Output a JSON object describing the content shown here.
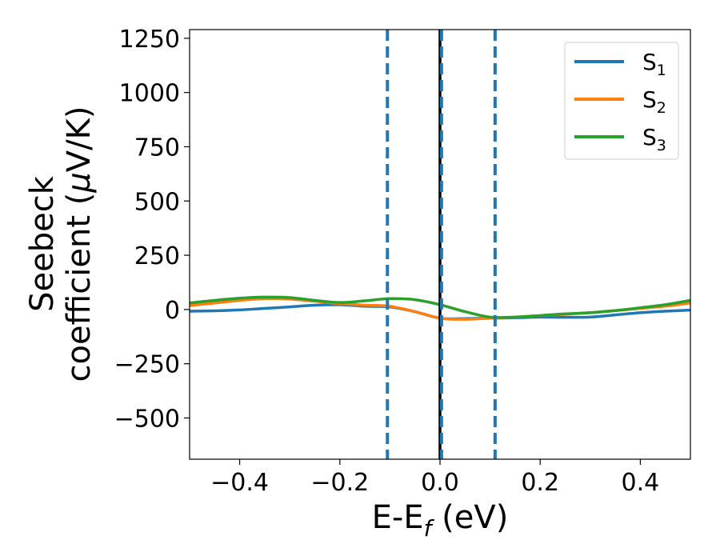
{
  "chart_data": {
    "type": "line",
    "xlabel": {
      "main": "E-E",
      "sub": "f",
      "unit": " (eV)"
    },
    "ylabel": {
      "line1": "Seebeck",
      "line2": "coefficient  (",
      "mu": "μ",
      "line2_end": "V/K)"
    },
    "xlim": [
      -0.5,
      0.5
    ],
    "ylim": [
      -690,
      1290
    ],
    "xticks": [
      -0.4,
      -0.2,
      0.0,
      0.2,
      0.4
    ],
    "xtick_labels": [
      "−0.4",
      "−0.2",
      "0.0",
      "0.2",
      "0.4"
    ],
    "yticks": [
      -500,
      -250,
      0,
      250,
      500,
      750,
      1000,
      1250
    ],
    "ytick_labels": [
      "−500",
      "−250",
      "0",
      "250",
      "500",
      "750",
      "1000",
      "1250"
    ],
    "grid": false,
    "legend_position": "top-right",
    "series": [
      {
        "name": "S",
        "sub": "1",
        "color": "#1f77b4",
        "x": [
          -0.5,
          -0.45,
          -0.4,
          -0.35,
          -0.3,
          -0.25,
          -0.2,
          -0.15,
          -0.1,
          -0.05,
          0.0,
          0.05,
          0.1,
          0.15,
          0.2,
          0.25,
          0.3,
          0.35,
          0.4,
          0.45,
          0.5
        ],
        "y": [
          -8,
          -6,
          -2,
          5,
          12,
          20,
          22,
          15,
          12,
          -10,
          -40,
          -42,
          -40,
          -38,
          -35,
          -36,
          -35,
          -25,
          -15,
          -8,
          -3
        ]
      },
      {
        "name": "S",
        "sub": "2",
        "color": "#ff7f0e",
        "x": [
          -0.5,
          -0.45,
          -0.4,
          -0.35,
          -0.3,
          -0.25,
          -0.2,
          -0.15,
          -0.1,
          -0.05,
          0.0,
          0.05,
          0.1,
          0.15,
          0.2,
          0.25,
          0.3,
          0.35,
          0.4,
          0.45,
          0.5
        ],
        "y": [
          18,
          30,
          42,
          50,
          48,
          38,
          27,
          20,
          15,
          -10,
          -40,
          -45,
          -40,
          -35,
          -28,
          -22,
          -15,
          -5,
          5,
          15,
          30
        ]
      },
      {
        "name": "S",
        "sub": "3",
        "color": "#2ca02c",
        "x": [
          -0.5,
          -0.45,
          -0.4,
          -0.35,
          -0.3,
          -0.25,
          -0.2,
          -0.15,
          -0.1,
          -0.05,
          0.0,
          0.05,
          0.1,
          0.15,
          0.2,
          0.25,
          0.3,
          0.35,
          0.4,
          0.45,
          0.5
        ],
        "y": [
          30,
          42,
          52,
          57,
          55,
          42,
          32,
          40,
          50,
          45,
          22,
          -10,
          -35,
          -35,
          -28,
          -20,
          -15,
          -5,
          8,
          22,
          42
        ]
      }
    ],
    "vlines": [
      {
        "x": -0.105,
        "style": "dashed",
        "color": "#1f77b4"
      },
      {
        "x": 0.0,
        "style": "solid",
        "color": "#000000"
      },
      {
        "x": 0.003,
        "style": "dashed",
        "color": "#1f77b4"
      },
      {
        "x": 0.11,
        "style": "dashed",
        "color": "#1f77b4"
      }
    ]
  }
}
